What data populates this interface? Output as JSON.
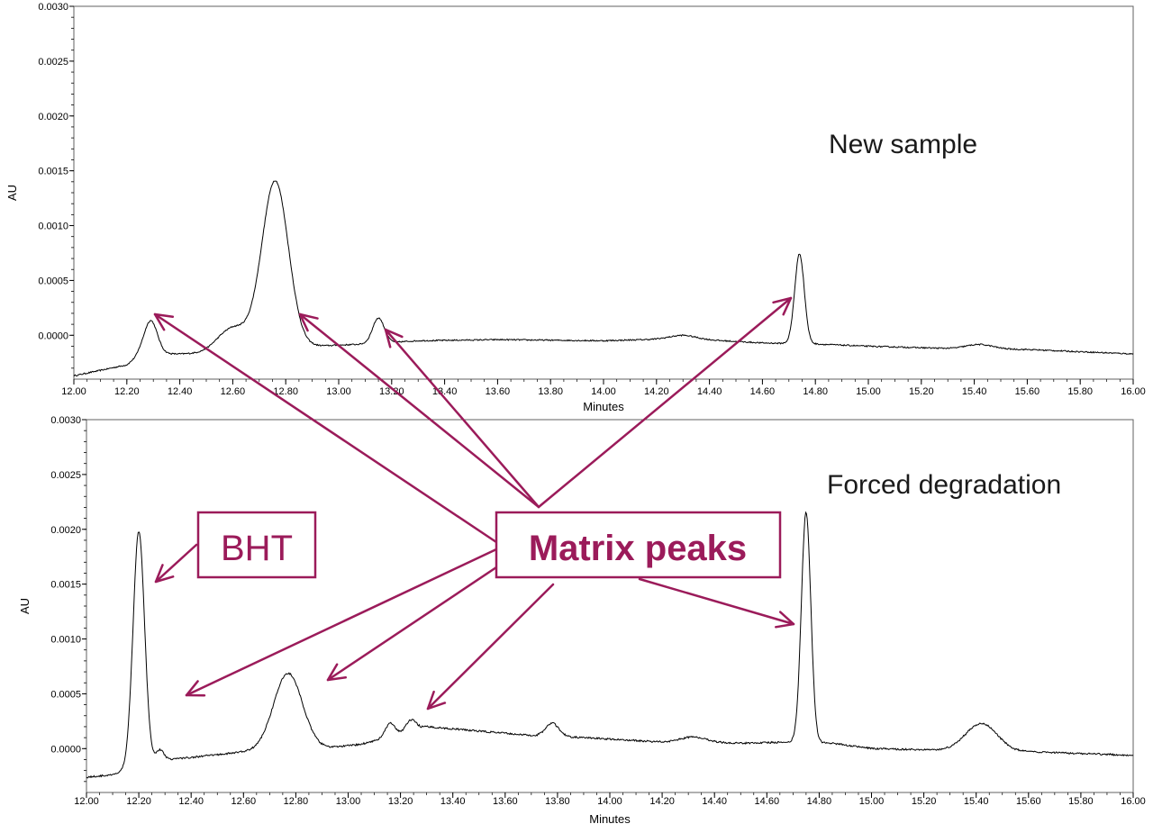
{
  "colors": {
    "trace": "#000000",
    "annotation": "#9b1b5a",
    "frame": "#606060"
  },
  "chart_data": [
    {
      "type": "line",
      "title": "New sample",
      "xlabel": "Minutes",
      "ylabel": "AU",
      "xlim": [
        12.0,
        16.0
      ],
      "ylim": [
        -0.0004,
        0.003
      ],
      "x_ticks": [
        "12.00",
        "12.20",
        "12.40",
        "12.60",
        "12.80",
        "13.00",
        "13.20",
        "13.40",
        "13.60",
        "13.80",
        "14.00",
        "14.20",
        "14.40",
        "14.60",
        "14.80",
        "15.00",
        "15.20",
        "15.40",
        "15.60",
        "15.80",
        "16.00"
      ],
      "y_ticks": [
        "0.0000",
        "0.0005",
        "0.0010",
        "0.0015",
        "0.0020",
        "0.0025",
        "0.0030"
      ],
      "grid": false,
      "series": [
        {
          "baseline": [
            [
              12.0,
              -0.00037
            ],
            [
              12.1,
              -0.00032
            ],
            [
              12.2,
              -0.00027
            ],
            [
              12.25,
              -0.00018
            ],
            [
              12.35,
              -0.00017
            ],
            [
              12.5,
              -0.00017
            ],
            [
              12.6,
              -0.00013
            ],
            [
              12.9,
              -0.0001
            ],
            [
              13.0,
              -9e-05
            ],
            [
              13.1,
              -8e-05
            ],
            [
              13.3,
              -5e-05
            ],
            [
              13.6,
              -4e-05
            ],
            [
              14.0,
              -5e-05
            ],
            [
              14.3,
              -3e-05
            ],
            [
              14.6,
              -7e-05
            ],
            [
              14.8,
              -8e-05
            ],
            [
              15.0,
              -0.0001
            ],
            [
              15.3,
              -0.00012
            ],
            [
              15.6,
              -0.00013
            ],
            [
              16.0,
              -0.00017
            ]
          ],
          "peaks": [
            {
              "rt": 12.29,
              "height": 0.00031,
              "width": 0.025
            },
            {
              "rt": 12.6,
              "height": 0.0002,
              "width": 0.06
            },
            {
              "rt": 12.76,
              "height": 0.00152,
              "width": 0.05
            },
            {
              "rt": 13.15,
              "height": 0.00023,
              "width": 0.022
            },
            {
              "rt": 14.3,
              "height": 3e-05,
              "width": 0.05
            },
            {
              "rt": 14.74,
              "height": 0.00082,
              "width": 0.018
            },
            {
              "rt": 15.42,
              "height": 4e-05,
              "width": 0.05
            }
          ],
          "noise": 6e-06
        }
      ]
    },
    {
      "type": "line",
      "title": "Forced degradation",
      "xlabel": "Minutes",
      "ylabel": "AU",
      "xlim": [
        12.0,
        16.0
      ],
      "ylim": [
        -0.0004,
        0.003
      ],
      "x_ticks": [
        "12.00",
        "12.20",
        "12.40",
        "12.60",
        "12.80",
        "13.00",
        "13.20",
        "13.40",
        "13.60",
        "13.80",
        "14.00",
        "14.20",
        "14.40",
        "14.60",
        "14.80",
        "15.00",
        "15.20",
        "15.40",
        "15.60",
        "15.80",
        "16.00"
      ],
      "y_ticks": [
        "0.0000",
        "0.0005",
        "0.0010",
        "0.0015",
        "0.0020",
        "0.0025",
        "0.0030"
      ],
      "grid": false,
      "series": [
        {
          "baseline": [
            [
              12.0,
              -0.00026
            ],
            [
              12.1,
              -0.00024
            ],
            [
              12.15,
              -0.0002
            ],
            [
              12.3,
              -0.0001
            ],
            [
              12.4,
              -8e-05
            ],
            [
              12.6,
              -3e-05
            ],
            [
              12.9,
              0.0
            ],
            [
              13.05,
              4e-05
            ],
            [
              13.3,
              0.0002
            ],
            [
              13.5,
              0.00016
            ],
            [
              13.7,
              0.00012
            ],
            [
              13.9,
              0.0001
            ],
            [
              14.2,
              6e-05
            ],
            [
              14.5,
              5e-05
            ],
            [
              14.7,
              6e-05
            ],
            [
              14.85,
              5e-05
            ],
            [
              15.0,
              0.0
            ],
            [
              15.2,
              -1e-05
            ],
            [
              15.6,
              -3e-05
            ],
            [
              16.0,
              -6e-05
            ]
          ],
          "peaks": [
            {
              "rt": 12.2,
              "height": 0.00215,
              "width": 0.022
            },
            {
              "rt": 12.28,
              "height": 0.0001,
              "width": 0.015
            },
            {
              "rt": 12.77,
              "height": 0.0007,
              "width": 0.055
            },
            {
              "rt": 13.16,
              "height": 0.00012,
              "width": 0.018
            },
            {
              "rt": 13.24,
              "height": 0.0001,
              "width": 0.02
            },
            {
              "rt": 13.78,
              "height": 0.00012,
              "width": 0.025
            },
            {
              "rt": 14.32,
              "height": 5e-05,
              "width": 0.05
            },
            {
              "rt": 14.75,
              "height": 0.0021,
              "width": 0.018
            },
            {
              "rt": 15.42,
              "height": 0.00025,
              "width": 0.06
            }
          ],
          "noise": 8e-06
        }
      ]
    }
  ],
  "annotations": {
    "matrix_label": "Matrix peaks",
    "bht_label": "BHT"
  }
}
